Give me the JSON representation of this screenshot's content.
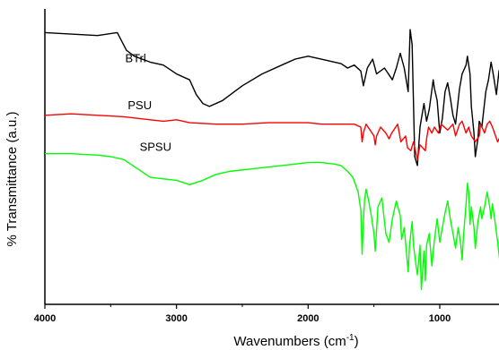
{
  "chart_data": {
    "type": "line",
    "title": "",
    "xlabel_main": "Wavenumbers (cm",
    "xlabel_sup": "-1",
    "xlabel_end": ")",
    "ylabel": "% Transmittance (a.u.)",
    "x_reversed": true,
    "xlim": [
      4000,
      500
    ],
    "ylim": [
      0,
      100
    ],
    "xticks": [
      4000,
      3000,
      2000,
      1000
    ],
    "grid": false,
    "series": [
      {
        "name": "BTrl",
        "color": "#000000",
        "points": [
          [
            4000,
            92
          ],
          [
            3800,
            91.5
          ],
          [
            3600,
            91
          ],
          [
            3450,
            92
          ],
          [
            3380,
            86
          ],
          [
            3320,
            84
          ],
          [
            3200,
            82
          ],
          [
            3100,
            81
          ],
          [
            3000,
            78
          ],
          [
            2900,
            76
          ],
          [
            2850,
            71
          ],
          [
            2800,
            68
          ],
          [
            2750,
            67
          ],
          [
            2650,
            69
          ],
          [
            2500,
            74
          ],
          [
            2350,
            78
          ],
          [
            2200,
            81
          ],
          [
            2100,
            83
          ],
          [
            2000,
            84
          ],
          [
            1900,
            83
          ],
          [
            1800,
            82
          ],
          [
            1750,
            81.5
          ],
          [
            1700,
            80
          ],
          [
            1650,
            81
          ],
          [
            1600,
            79
          ],
          [
            1580,
            74
          ],
          [
            1550,
            80
          ],
          [
            1510,
            83
          ],
          [
            1480,
            78
          ],
          [
            1420,
            80
          ],
          [
            1360,
            76
          ],
          [
            1330,
            80
          ],
          [
            1300,
            85
          ],
          [
            1270,
            80
          ],
          [
            1240,
            72
          ],
          [
            1225,
            93
          ],
          [
            1210,
            88
          ],
          [
            1190,
            50
          ],
          [
            1170,
            47
          ],
          [
            1150,
            60
          ],
          [
            1120,
            68
          ],
          [
            1100,
            62
          ],
          [
            1080,
            66
          ],
          [
            1050,
            76
          ],
          [
            1040,
            73
          ],
          [
            1020,
            69
          ],
          [
            1000,
            58
          ],
          [
            980,
            63
          ],
          [
            960,
            72
          ],
          [
            940,
            75
          ],
          [
            920,
            70
          ],
          [
            900,
            64
          ],
          [
            880,
            61
          ],
          [
            850,
            73
          ],
          [
            830,
            78
          ],
          [
            800,
            81
          ],
          [
            790,
            84
          ],
          [
            770,
            78
          ],
          [
            760,
            67
          ],
          [
            740,
            58
          ],
          [
            730,
            50
          ],
          [
            710,
            56
          ],
          [
            700,
            62
          ],
          [
            680,
            60
          ],
          [
            650,
            72
          ],
          [
            630,
            76
          ],
          [
            610,
            82
          ],
          [
            590,
            77
          ],
          [
            570,
            71
          ],
          [
            550,
            79
          ],
          [
            520,
            81
          ],
          [
            500,
            80
          ]
        ]
      },
      {
        "name": "PSU",
        "color": "#ff0000",
        "points": [
          [
            4000,
            64
          ],
          [
            3800,
            64.5
          ],
          [
            3600,
            64
          ],
          [
            3400,
            63.5
          ],
          [
            3200,
            62.5
          ],
          [
            3100,
            62
          ],
          [
            3000,
            62.5
          ],
          [
            2900,
            61.5
          ],
          [
            2700,
            61
          ],
          [
            2500,
            61
          ],
          [
            2300,
            61.5
          ],
          [
            2100,
            61.5
          ],
          [
            2000,
            61.5
          ],
          [
            1900,
            61
          ],
          [
            1800,
            61
          ],
          [
            1700,
            61
          ],
          [
            1650,
            61
          ],
          [
            1600,
            60
          ],
          [
            1590,
            55
          ],
          [
            1580,
            58
          ],
          [
            1560,
            61
          ],
          [
            1500,
            57
          ],
          [
            1490,
            54
          ],
          [
            1480,
            57
          ],
          [
            1450,
            60
          ],
          [
            1410,
            58
          ],
          [
            1385,
            56
          ],
          [
            1365,
            58
          ],
          [
            1320,
            61
          ],
          [
            1295,
            55
          ],
          [
            1260,
            57
          ],
          [
            1245,
            53
          ],
          [
            1220,
            52
          ],
          [
            1200,
            55
          ],
          [
            1170,
            49
          ],
          [
            1150,
            54
          ],
          [
            1110,
            52
          ],
          [
            1100,
            56
          ],
          [
            1085,
            60
          ],
          [
            1060,
            58
          ],
          [
            1040,
            60
          ],
          [
            1010,
            58
          ],
          [
            990,
            61
          ],
          [
            940,
            59
          ],
          [
            900,
            61
          ],
          [
            880,
            57
          ],
          [
            850,
            61
          ],
          [
            830,
            62
          ],
          [
            800,
            58
          ],
          [
            780,
            60
          ],
          [
            760,
            57
          ],
          [
            730,
            55
          ],
          [
            700,
            57
          ],
          [
            690,
            61
          ],
          [
            660,
            58
          ],
          [
            640,
            61
          ],
          [
            620,
            62
          ],
          [
            600,
            60
          ],
          [
            560,
            55
          ],
          [
            540,
            57
          ],
          [
            520,
            55
          ],
          [
            500,
            58
          ]
        ]
      },
      {
        "name": "SPSU",
        "color": "#00ff00",
        "points": [
          [
            4000,
            51
          ],
          [
            3800,
            51
          ],
          [
            3600,
            50.5
          ],
          [
            3500,
            50
          ],
          [
            3400,
            49
          ],
          [
            3300,
            46
          ],
          [
            3200,
            43
          ],
          [
            3100,
            42.5
          ],
          [
            3000,
            42
          ],
          [
            2900,
            40.5
          ],
          [
            2800,
            42
          ],
          [
            2700,
            44
          ],
          [
            2600,
            45
          ],
          [
            2400,
            46
          ],
          [
            2200,
            47
          ],
          [
            2000,
            48
          ],
          [
            1900,
            48
          ],
          [
            1800,
            47.5
          ],
          [
            1750,
            47
          ],
          [
            1700,
            45
          ],
          [
            1660,
            43
          ],
          [
            1620,
            38
          ],
          [
            1600,
            32
          ],
          [
            1590,
            17
          ],
          [
            1580,
            28
          ],
          [
            1570,
            36
          ],
          [
            1560,
            39
          ],
          [
            1540,
            35
          ],
          [
            1520,
            30
          ],
          [
            1500,
            24
          ],
          [
            1490,
            18
          ],
          [
            1480,
            25
          ],
          [
            1470,
            33
          ],
          [
            1440,
            36
          ],
          [
            1410,
            24
          ],
          [
            1385,
            21
          ],
          [
            1360,
            29
          ],
          [
            1330,
            35
          ],
          [
            1300,
            30
          ],
          [
            1290,
            22
          ],
          [
            1270,
            26
          ],
          [
            1240,
            11
          ],
          [
            1230,
            20
          ],
          [
            1210,
            28
          ],
          [
            1200,
            20
          ],
          [
            1180,
            13
          ],
          [
            1170,
            10
          ],
          [
            1150,
            20
          ],
          [
            1140,
            5
          ],
          [
            1120,
            18
          ],
          [
            1110,
            8
          ],
          [
            1100,
            20
          ],
          [
            1080,
            24
          ],
          [
            1060,
            13
          ],
          [
            1040,
            22
          ],
          [
            1020,
            29
          ],
          [
            1000,
            21
          ],
          [
            980,
            26
          ],
          [
            960,
            31
          ],
          [
            940,
            35
          ],
          [
            920,
            29
          ],
          [
            900,
            24
          ],
          [
            880,
            19
          ],
          [
            860,
            26
          ],
          [
            840,
            20
          ],
          [
            830,
            15
          ],
          [
            820,
            23
          ],
          [
            800,
            34
          ],
          [
            790,
            41
          ],
          [
            780,
            38
          ],
          [
            770,
            27
          ],
          [
            760,
            33
          ],
          [
            740,
            26
          ],
          [
            730,
            19
          ],
          [
            710,
            28
          ],
          [
            690,
            33
          ],
          [
            680,
            29
          ],
          [
            660,
            33
          ],
          [
            640,
            38
          ],
          [
            620,
            33
          ],
          [
            610,
            29
          ],
          [
            600,
            34
          ],
          [
            580,
            28
          ],
          [
            560,
            21
          ],
          [
            540,
            13
          ],
          [
            530,
            9
          ],
          [
            510,
            16
          ],
          [
            500,
            24
          ]
        ]
      }
    ]
  }
}
